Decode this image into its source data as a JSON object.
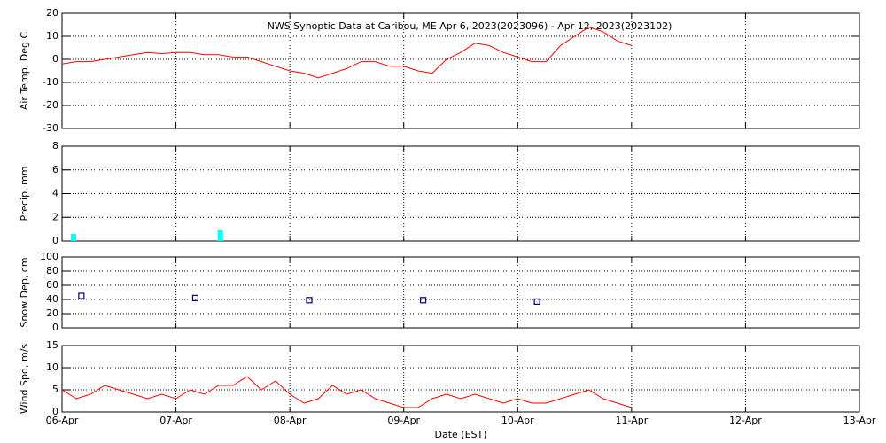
{
  "chart_data": [
    {
      "type": "line",
      "title": "NWS Synoptic Data at Caribou, ME   Apr  6, 2023(2023096) - Apr 12, 2023(2023102)",
      "ylabel": "Air Temp, Deg C",
      "xlim": [
        0,
        7
      ],
      "ylim": [
        -30,
        20
      ],
      "yticks": [
        -30,
        -20,
        -10,
        0,
        10,
        20
      ],
      "grid": true,
      "x": [
        0,
        0.125,
        0.25,
        0.375,
        0.5,
        0.625,
        0.75,
        0.875,
        1,
        1.125,
        1.25,
        1.375,
        1.5,
        1.625,
        1.75,
        1.875,
        2,
        2.125,
        2.25,
        2.375,
        2.5,
        2.625,
        2.75,
        2.875,
        3,
        3.125,
        3.25,
        3.375,
        3.5,
        3.625,
        3.75,
        3.875,
        4,
        4.125,
        4.25,
        4.375,
        4.5,
        4.625,
        4.75,
        4.875,
        5
      ],
      "series": [
        {
          "color": "#ff0000",
          "values": [
            -2,
            -1,
            -1,
            0,
            1,
            2,
            3,
            2.5,
            3,
            3,
            2,
            2,
            1,
            1,
            -1,
            -3,
            -5,
            -6,
            -8,
            -6,
            -4,
            -1,
            -1,
            -3,
            -3,
            -5,
            -6,
            0,
            3,
            7,
            6,
            3,
            1,
            -1,
            -1,
            6,
            10,
            14,
            12,
            8,
            6
          ]
        }
      ]
    },
    {
      "type": "bar",
      "ylabel": "Precip, mm",
      "xlim": [
        0,
        7
      ],
      "ylim": [
        0,
        8
      ],
      "yticks": [
        0,
        2,
        4,
        6,
        8
      ],
      "grid": true,
      "x": [
        0.1,
        1.39
      ],
      "series": [
        {
          "color": "#00ffff",
          "values": [
            0.6,
            0.9
          ]
        }
      ]
    },
    {
      "type": "scatter",
      "ylabel": "Snow Dep, cm",
      "xlim": [
        0,
        7
      ],
      "ylim": [
        0,
        100
      ],
      "yticks": [
        0,
        20,
        40,
        60,
        80,
        100
      ],
      "grid": true,
      "x": [
        0.17,
        1.17,
        2.17,
        3.17,
        4.17
      ],
      "series": [
        {
          "color": "#000080",
          "values": [
            45,
            42,
            39,
            39,
            37
          ]
        }
      ]
    },
    {
      "type": "line",
      "ylabel": "Wind Spd, m/s",
      "xlabel": "Date (EST)",
      "xlim": [
        0,
        7
      ],
      "ylim": [
        0,
        15
      ],
      "yticks": [
        0,
        5,
        10,
        15
      ],
      "grid": true,
      "xticks": [
        {
          "value": 0,
          "label": "06-Apr"
        },
        {
          "value": 1,
          "label": "07-Apr"
        },
        {
          "value": 2,
          "label": "08-Apr"
        },
        {
          "value": 3,
          "label": "09-Apr"
        },
        {
          "value": 4,
          "label": "10-Apr"
        },
        {
          "value": 5,
          "label": "11-Apr"
        },
        {
          "value": 6,
          "label": "12-Apr"
        },
        {
          "value": 7,
          "label": "13-Apr"
        }
      ],
      "x": [
        0,
        0.125,
        0.25,
        0.375,
        0.5,
        0.625,
        0.75,
        0.875,
        1,
        1.125,
        1.25,
        1.375,
        1.5,
        1.625,
        1.75,
        1.875,
        2,
        2.125,
        2.25,
        2.375,
        2.5,
        2.625,
        2.75,
        2.875,
        3,
        3.125,
        3.25,
        3.375,
        3.5,
        3.625,
        3.75,
        3.875,
        4,
        4.125,
        4.25,
        4.375,
        4.5,
        4.625,
        4.75,
        4.875,
        5
      ],
      "series": [
        {
          "color": "#ff0000",
          "values": [
            5,
            3,
            4,
            6,
            5,
            4,
            3,
            4,
            3,
            5,
            4,
            6,
            6,
            8,
            5,
            7,
            4,
            2,
            3,
            6,
            4,
            5,
            3,
            2,
            1,
            1,
            3,
            4,
            3,
            4,
            3,
            2,
            3,
            2,
            2,
            3,
            4,
            5,
            3,
            2,
            1
          ]
        }
      ]
    }
  ]
}
